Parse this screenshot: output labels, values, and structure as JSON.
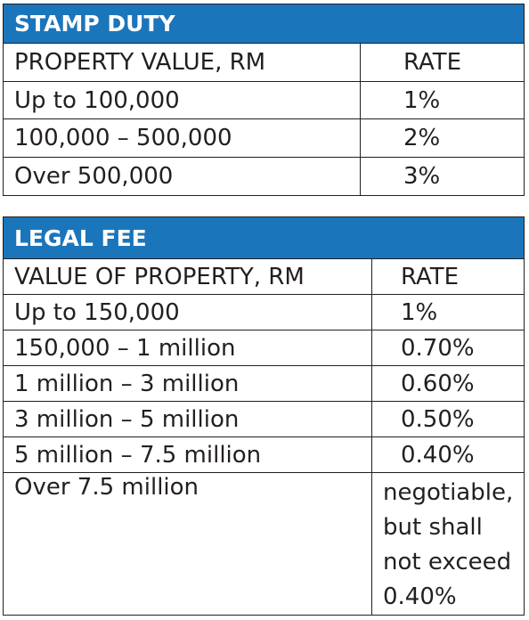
{
  "stamp_duty": {
    "title": "STAMP DUTY",
    "col_value": "PROPERTY VALUE, RM",
    "col_rate": "RATE",
    "rows": [
      {
        "value": "Up to 100,000",
        "rate": "1%"
      },
      {
        "value": "100,000 – 500,000",
        "rate": "2%"
      },
      {
        "value": "Over 500,000",
        "rate": "3%"
      }
    ]
  },
  "legal_fee": {
    "title": "LEGAL FEE",
    "col_value": "VALUE OF PROPERTY, RM",
    "col_rate": "RATE",
    "rows": [
      {
        "value": "Up to 150,000",
        "rate": "1%"
      },
      {
        "value": "150,000 – 1 million",
        "rate": "0.70%"
      },
      {
        "value": "1 million – 3 million",
        "rate": "0.60%"
      },
      {
        "value": "3 million – 5 million",
        "rate": "0.50%"
      },
      {
        "value": "5 million – 7.5 million",
        "rate": "0.40%"
      }
    ],
    "last_row": {
      "value": "Over 7.5 million",
      "rate_lines": [
        "negotiable,",
        "but shall",
        "not exceed",
        "0.40%"
      ]
    }
  }
}
